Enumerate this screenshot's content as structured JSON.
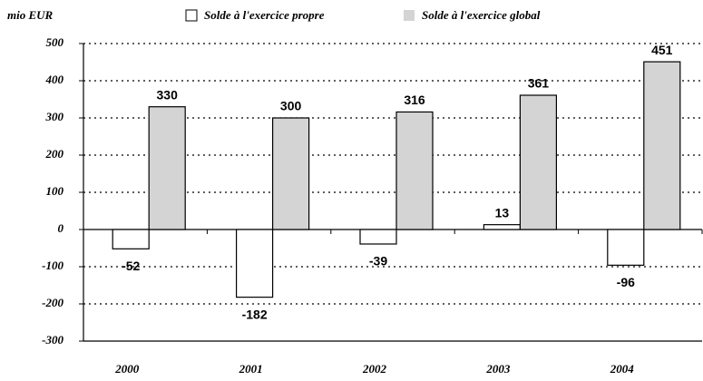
{
  "chart_data": {
    "type": "bar",
    "ylabel": "mio EUR",
    "categories": [
      "2000",
      "2001",
      "2002",
      "2003",
      "2004"
    ],
    "series": [
      {
        "name": "Solde à l'exercice propre",
        "color": "#ffffff",
        "values": [
          -52,
          -182,
          -39,
          13,
          -96
        ]
      },
      {
        "name": "Solde à l'exercice global",
        "color": "#d4d4d4",
        "values": [
          330,
          300,
          316,
          361,
          451
        ]
      }
    ],
    "ylim": [
      -300,
      500
    ],
    "yticks": [
      -300,
      -200,
      -100,
      0,
      100,
      200,
      300,
      400,
      500
    ],
    "grid": true
  }
}
